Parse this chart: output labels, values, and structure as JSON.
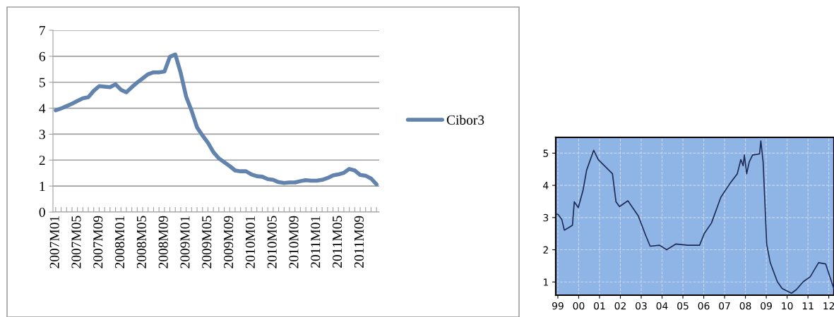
{
  "chart_data": [
    {
      "type": "line",
      "categories": [
        "2007M01",
        null,
        null,
        null,
        "2007M05",
        null,
        null,
        null,
        "2007M09",
        null,
        null,
        null,
        "2008M01",
        null,
        null,
        null,
        "2008M05",
        null,
        null,
        null,
        "2008M09",
        null,
        null,
        null,
        "2009M01",
        null,
        null,
        null,
        "2009M05",
        null,
        null,
        null,
        "2009M09",
        null,
        null,
        null,
        "2010M01",
        null,
        null,
        null,
        "2010M05",
        null,
        null,
        null,
        "2010M09",
        null,
        null,
        null,
        "2011M01",
        null,
        null,
        null,
        "2011M05",
        null,
        null,
        null,
        "2011M09",
        null,
        null,
        null
      ],
      "series": [
        {
          "name": "Cibor3",
          "color": "#6283ad",
          "values": [
            3.92,
            3.99,
            4.08,
            4.17,
            4.28,
            4.38,
            4.42,
            4.67,
            4.85,
            4.83,
            4.81,
            4.92,
            4.71,
            4.61,
            4.81,
            4.99,
            5.15,
            5.31,
            5.38,
            5.38,
            5.41,
            5.98,
            6.07,
            5.35,
            4.44,
            3.9,
            3.26,
            2.95,
            2.67,
            2.31,
            2.07,
            1.92,
            1.77,
            1.6,
            1.57,
            1.57,
            1.45,
            1.38,
            1.36,
            1.27,
            1.24,
            1.15,
            1.12,
            1.14,
            1.14,
            1.19,
            1.23,
            1.21,
            1.21,
            1.24,
            1.31,
            1.41,
            1.45,
            1.51,
            1.66,
            1.6,
            1.43,
            1.4,
            1.29,
            1.07
          ]
        }
      ],
      "ylim": [
        0,
        7
      ],
      "yticks": [
        0,
        1,
        2,
        3,
        4,
        5,
        6,
        7
      ],
      "grid": "y",
      "legend": "right"
    },
    {
      "type": "line",
      "series": [
        {
          "color": "#1c2b55",
          "x": [
            1998.91,
            1999.02,
            1999.19,
            1999.31,
            1999.53,
            1999.7,
            1999.79,
            1999.98,
            2000.21,
            2000.38,
            2000.72,
            2000.94,
            2001.17,
            2001.28,
            2001.62,
            2001.79,
            2001.96,
            2002.36,
            2002.86,
            2003.2,
            2003.43,
            2003.88,
            2004.22,
            2004.67,
            2005.24,
            2005.8,
            2006.03,
            2006.37,
            2006.82,
            2007.27,
            2007.61,
            2007.78,
            2007.89,
            2007.95,
            2008.06,
            2008.18,
            2008.34,
            2008.68,
            2008.74,
            2008.85,
            2009.02,
            2009.19,
            2009.53,
            2009.76,
            2010.21,
            2010.44,
            2010.78,
            2011.11,
            2011.51,
            2011.85,
            2012.24
          ],
          "values": [
            3.12,
            3.09,
            2.94,
            2.61,
            2.69,
            2.76,
            3.49,
            3.31,
            3.85,
            4.47,
            5.09,
            4.8,
            4.65,
            4.58,
            4.36,
            3.49,
            3.34,
            3.52,
            3.05,
            2.47,
            2.11,
            2.14,
            2.0,
            2.18,
            2.14,
            2.14,
            2.51,
            2.83,
            3.63,
            4.07,
            4.36,
            4.8,
            4.61,
            4.94,
            4.36,
            4.72,
            4.94,
            4.98,
            5.38,
            4.72,
            2.18,
            1.6,
            1.01,
            0.8,
            0.65,
            0.76,
            1.01,
            1.16,
            1.6,
            1.56,
            0.8
          ]
        }
      ],
      "xlim": [
        1998.9,
        2012.25
      ],
      "xticks": [
        {
          "value": 1999,
          "label": "99"
        },
        {
          "value": 2000,
          "label": "00"
        },
        {
          "value": 2001,
          "label": "01"
        },
        {
          "value": 2002,
          "label": "02"
        },
        {
          "value": 2003,
          "label": "03"
        },
        {
          "value": 2004,
          "label": "04"
        },
        {
          "value": 2005,
          "label": "05"
        },
        {
          "value": 2006,
          "label": "06"
        },
        {
          "value": 2007,
          "label": "07"
        },
        {
          "value": 2008,
          "label": "08"
        },
        {
          "value": 2009,
          "label": "09"
        },
        {
          "value": 2010,
          "label": "10"
        },
        {
          "value": 2011,
          "label": "11"
        },
        {
          "value": 2012,
          "label": "12"
        }
      ],
      "ylim": [
        0.59,
        5.49
      ],
      "yticks": [
        1,
        2,
        3,
        4,
        5
      ],
      "grid": true,
      "line_style": "solid"
    }
  ]
}
